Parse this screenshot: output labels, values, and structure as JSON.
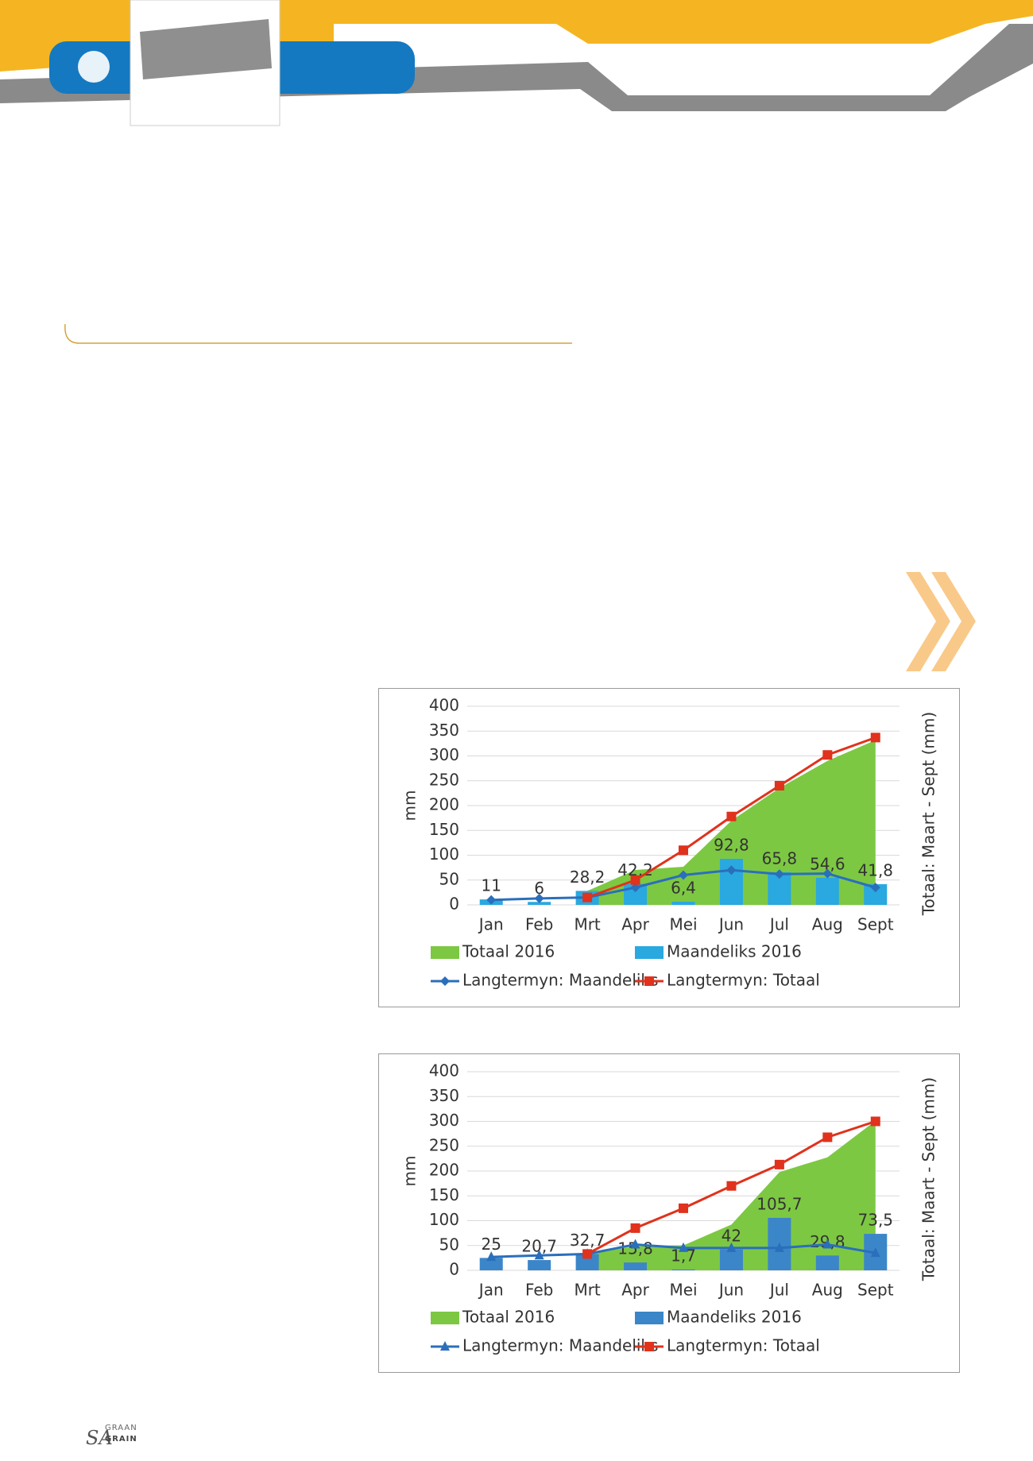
{
  "chart_data": [
    {
      "type": "combo",
      "y_label": "mm",
      "y2_label": "Totaal: Maart - Sept (mm)",
      "categories": [
        "Jan",
        "Feb",
        "Mrt",
        "Apr",
        "Mei",
        "Jun",
        "Jul",
        "Aug",
        "Sept"
      ],
      "ylim": [
        0,
        400
      ],
      "yticks": [
        0,
        50,
        100,
        150,
        200,
        250,
        300,
        350,
        400
      ],
      "grid": true,
      "series": [
        {
          "name": "Totaal 2016",
          "kind": "area",
          "color": "#7dc843",
          "values": [
            null,
            null,
            28.2,
            70.4,
            76.8,
            169.6,
            235.4,
            290,
            331.8
          ]
        },
        {
          "name": "Maandeliks 2016",
          "kind": "bar",
          "color": "#2aa8e0",
          "values": [
            11,
            6,
            28.2,
            42.2,
            6.4,
            92.8,
            65.8,
            54.6,
            41.8
          ],
          "value_labels": [
            "11",
            "6",
            "28,2",
            "42,2",
            "6,4",
            "92,8",
            "65,8",
            "54,6",
            "41,8"
          ]
        },
        {
          "name": "Langtermyn: Maandeliks",
          "kind": "line",
          "marker": "diamond",
          "color": "#2a6fbb",
          "values": [
            10,
            13,
            15,
            35,
            60,
            70,
            62,
            63,
            35
          ]
        },
        {
          "name": "Langtermyn: Totaal",
          "kind": "line",
          "marker": "square",
          "color": "#e0321c",
          "values": [
            null,
            null,
            15,
            50,
            110,
            178,
            240,
            302,
            337
          ]
        }
      ]
    },
    {
      "type": "combo",
      "y_label": "mm",
      "y2_label": "Totaal: Maart - Sept (mm)",
      "categories": [
        "Jan",
        "Feb",
        "Mrt",
        "Apr",
        "Mei",
        "Jun",
        "Jul",
        "Aug",
        "Sept"
      ],
      "ylim": [
        0,
        400
      ],
      "yticks": [
        0,
        50,
        100,
        150,
        200,
        250,
        300,
        350,
        400
      ],
      "grid": true,
      "series": [
        {
          "name": "Totaal 2016",
          "kind": "area",
          "color": "#7dc843",
          "values": [
            null,
            null,
            32.7,
            48.5,
            50.2,
            92.2,
            197.9,
            227.7,
            301.2
          ]
        },
        {
          "name": "Maandeliks 2016",
          "kind": "bar",
          "color": "#3b86c8",
          "values": [
            25,
            20.7,
            32.7,
            15.8,
            1.7,
            42,
            105.7,
            29.8,
            73.5
          ],
          "value_labels": [
            "25",
            "20,7",
            "32,7",
            "15,8",
            "1,7",
            "42",
            "105,7",
            "29,8",
            "73,5"
          ]
        },
        {
          "name": "Langtermyn: Maandeliks",
          "kind": "line",
          "marker": "triangle",
          "color": "#2a6fbb",
          "values": [
            27,
            30,
            33,
            52,
            45,
            45,
            45,
            52,
            35
          ]
        },
        {
          "name": "Langtermyn: Totaal",
          "kind": "line",
          "marker": "square",
          "color": "#e0321c",
          "values": [
            null,
            null,
            33,
            85,
            125,
            170,
            213,
            268,
            300
          ]
        }
      ]
    }
  ],
  "footer": {
    "brand": "SA",
    "graan": "GRAAN",
    "grain": "GRAIN"
  }
}
